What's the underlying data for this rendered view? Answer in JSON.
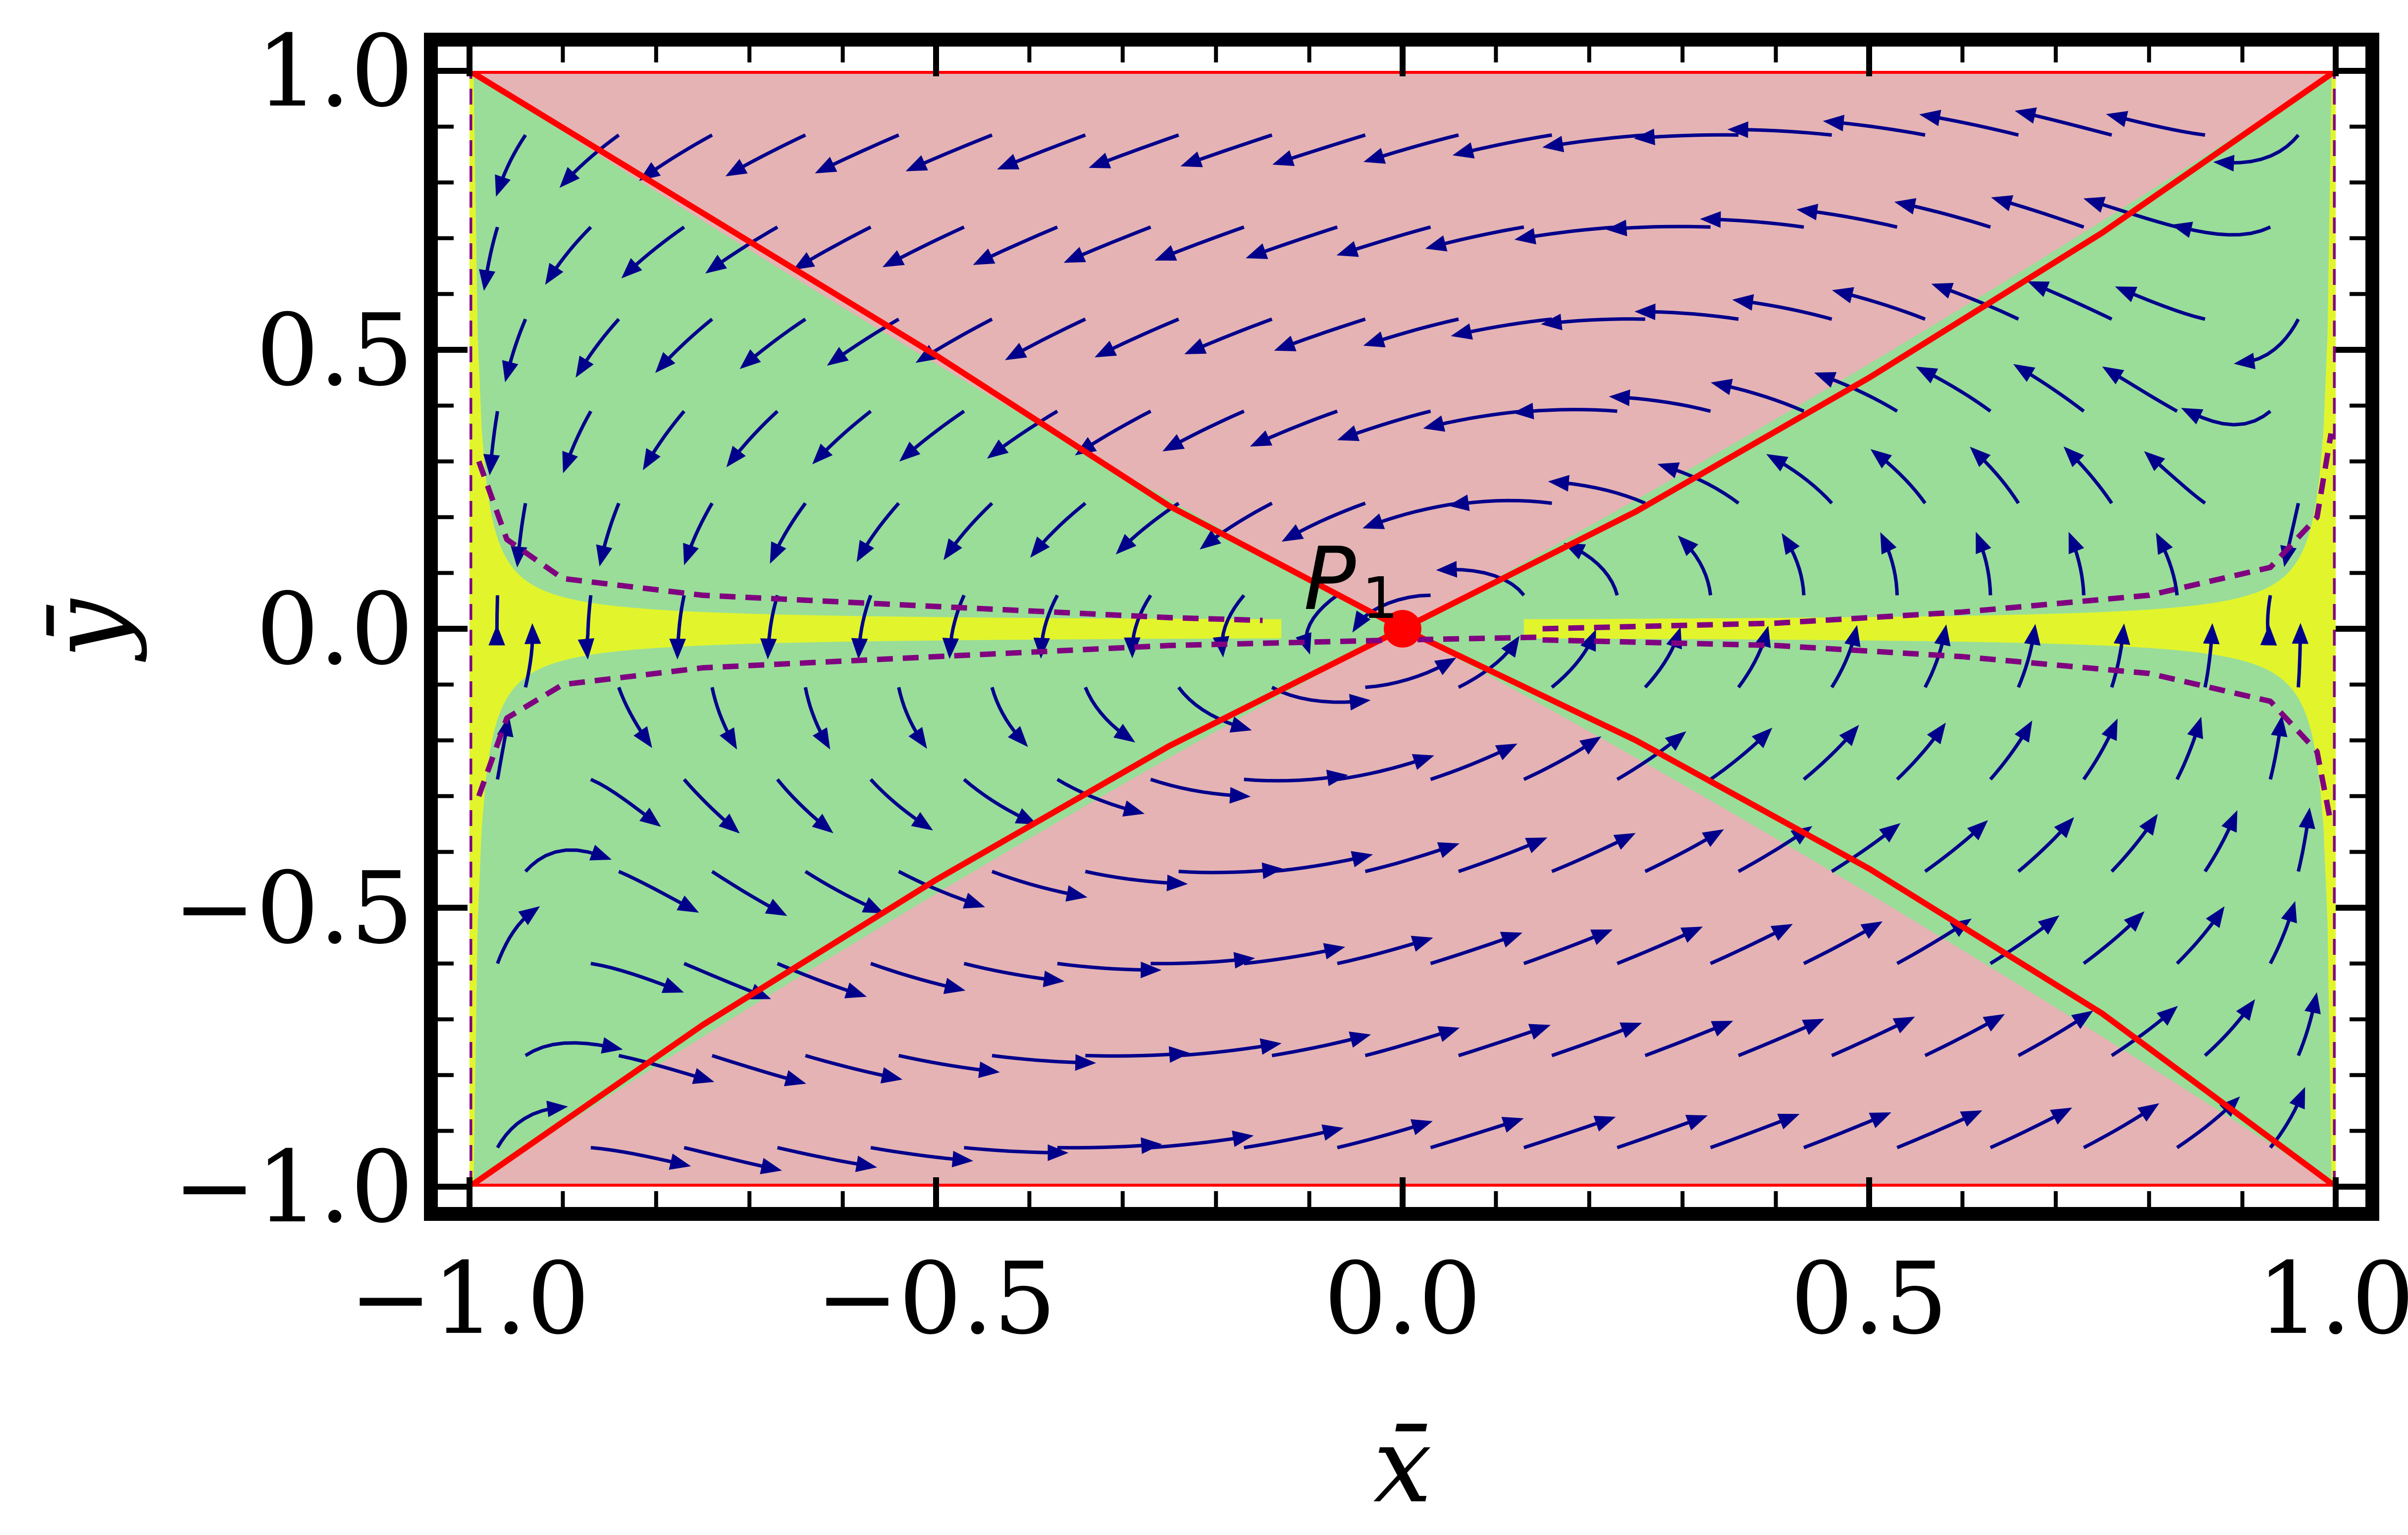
{
  "chart_data": {
    "type": "streamplot",
    "title": "",
    "xlabel": "x̄",
    "ylabel": "ȳ",
    "xlim": [
      -1.0,
      1.0
    ],
    "ylim": [
      -1.0,
      1.0
    ],
    "x_ticks": [
      -1.0,
      -0.5,
      0.0,
      0.5,
      1.0
    ],
    "y_ticks": [
      -1.0,
      -0.5,
      0.0,
      0.5,
      1.0
    ],
    "x_tick_labels": [
      "−1.0",
      "−0.5",
      "0.0",
      "0.5",
      "1.0"
    ],
    "y_tick_labels": [
      "−1.0",
      "−0.5",
      "0.0",
      "0.5",
      "1.0"
    ],
    "grid": false,
    "legend": "none",
    "regions": [
      {
        "color": "#E5B3B3",
        "description_curve": "|y| > (1 - x^2 ... ) wedge above/below red boundary lines"
      },
      {
        "color": "#99DD99"
      },
      {
        "color": "#E2F52C"
      }
    ],
    "curves": [
      {
        "role": "boundary",
        "color": "#FF0000",
        "style": "solid",
        "points": [
          [
            -1.0,
            1.0
          ],
          [
            -0.5,
            0.49
          ],
          [
            -0.25,
            0.22
          ],
          [
            0.0,
            0.0
          ],
          [
            0.25,
            -0.2
          ],
          [
            0.5,
            -0.43
          ],
          [
            0.75,
            -0.69
          ],
          [
            1.0,
            -1.0
          ]
        ]
      },
      {
        "role": "boundary",
        "color": "#FF0000",
        "style": "solid",
        "points": [
          [
            -1.0,
            -1.0
          ],
          [
            -0.75,
            -0.71
          ],
          [
            -0.5,
            -0.45
          ],
          [
            -0.25,
            -0.21
          ],
          [
            0.0,
            0.0
          ],
          [
            0.25,
            0.21
          ],
          [
            0.5,
            0.45
          ],
          [
            0.75,
            0.71
          ],
          [
            1.0,
            1.0
          ]
        ]
      },
      {
        "role": "boundary",
        "color": "#FF0000",
        "style": "solid",
        "points": [
          [
            -1.0,
            1.0
          ],
          [
            1.0,
            1.0
          ]
        ]
      },
      {
        "role": "boundary",
        "color": "#FF0000",
        "style": "solid",
        "points": [
          [
            -1.0,
            -1.0
          ],
          [
            1.0,
            -1.0
          ]
        ]
      },
      {
        "role": "boundary",
        "color": "#800080",
        "style": "dashed",
        "points": [
          [
            -0.99,
            0.3
          ],
          [
            -0.96,
            0.16
          ],
          [
            -0.9,
            0.09
          ],
          [
            -0.75,
            0.06
          ],
          [
            -0.5,
            0.04
          ],
          [
            -0.25,
            0.02
          ],
          [
            -0.15,
            0.015
          ]
        ]
      },
      {
        "role": "boundary",
        "color": "#800080",
        "style": "dashed",
        "points": [
          [
            -0.99,
            -0.3
          ],
          [
            -0.96,
            -0.16
          ],
          [
            -0.9,
            -0.1
          ],
          [
            -0.75,
            -0.07
          ],
          [
            -0.5,
            -0.05
          ],
          [
            -0.25,
            -0.03
          ],
          [
            0.0,
            -0.02
          ],
          [
            0.15,
            -0.015
          ]
        ]
      },
      {
        "role": "boundary",
        "color": "#800080",
        "style": "dashed",
        "points": [
          [
            0.15,
            0.0
          ],
          [
            0.4,
            0.01
          ],
          [
            0.6,
            0.03
          ],
          [
            0.8,
            0.06
          ],
          [
            0.93,
            0.11
          ],
          [
            0.98,
            0.2
          ],
          [
            0.995,
            0.35
          ]
        ]
      },
      {
        "role": "boundary",
        "color": "#800080",
        "style": "dashed",
        "points": [
          [
            0.15,
            -0.02
          ],
          [
            0.4,
            -0.03
          ],
          [
            0.6,
            -0.05
          ],
          [
            0.8,
            -0.08
          ],
          [
            0.93,
            -0.13
          ],
          [
            0.98,
            -0.22
          ],
          [
            0.995,
            -0.35
          ]
        ]
      },
      {
        "role": "boundary",
        "color": "#800080",
        "style": "dashed",
        "points": [
          [
            -1.0,
            -1.0
          ],
          [
            -1.0,
            1.0
          ]
        ]
      },
      {
        "role": "boundary",
        "color": "#800080",
        "style": "dashed",
        "points": [
          [
            1.0,
            -1.0
          ],
          [
            1.0,
            1.0
          ]
        ]
      }
    ],
    "critical_points": [
      {
        "name": "P",
        "subscript": "1",
        "x": 0.0,
        "y": 0.0,
        "color": "#FF0000"
      }
    ],
    "stream_color": "#00008B",
    "series": []
  }
}
